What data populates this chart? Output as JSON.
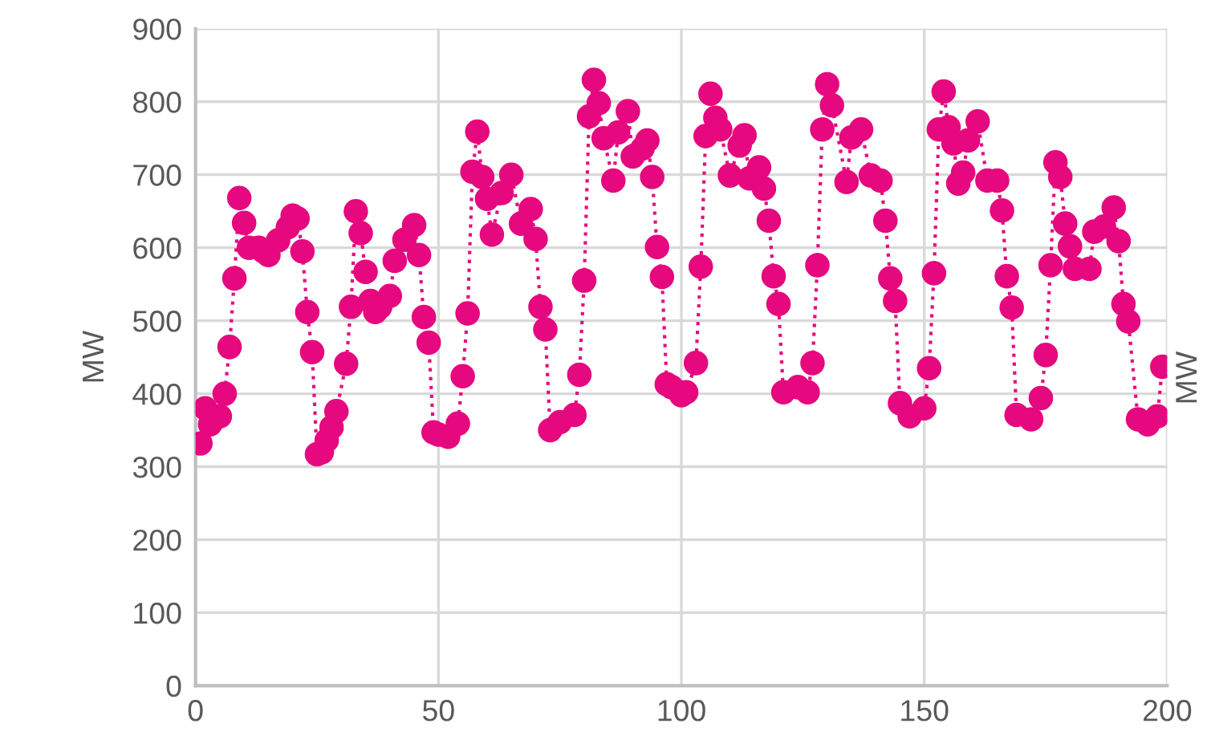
{
  "chart_data": {
    "type": "line",
    "ylabel": "MW",
    "y2label": "MW",
    "xlim": [
      0,
      200
    ],
    "xticks": [
      0,
      50,
      100,
      150,
      200
    ],
    "ylim": [
      0,
      900
    ],
    "yticks": [
      0,
      100,
      200,
      300,
      400,
      500,
      600,
      700,
      800,
      900
    ],
    "grid": true,
    "marker": "circle",
    "line_style": "dotted",
    "series": [
      {
        "color": "#e6087f",
        "x": [
          1,
          2,
          3,
          5,
          6,
          7,
          8,
          9,
          10,
          11,
          13,
          14,
          15,
          17,
          19,
          20,
          21,
          22,
          23,
          24,
          25,
          26,
          27,
          28,
          29,
          31,
          32,
          33,
          34,
          35,
          36,
          37,
          38,
          40,
          41,
          43,
          45,
          46,
          47,
          48,
          49,
          50,
          52,
          54,
          55,
          56,
          57,
          58,
          59,
          60,
          61,
          63,
          65,
          67,
          69,
          70,
          71,
          72,
          73,
          75,
          78,
          79,
          80,
          81,
          82,
          83,
          84,
          86,
          87,
          89,
          90,
          92,
          93,
          94,
          95,
          96,
          97,
          98,
          100,
          101,
          103,
          104,
          105,
          106,
          107,
          108,
          110,
          112,
          113,
          114,
          116,
          117,
          118,
          119,
          120,
          121,
          124,
          126,
          127,
          128,
          129,
          130,
          131,
          134,
          135,
          137,
          139,
          141,
          142,
          143,
          144,
          145,
          147,
          150,
          151,
          152,
          153,
          154,
          155,
          156,
          157,
          158,
          159,
          161,
          163,
          165,
          166,
          167,
          168,
          169,
          172,
          174,
          175,
          176,
          177,
          178,
          179,
          180,
          181,
          184,
          185,
          187,
          189,
          190,
          191,
          192,
          194,
          196,
          198,
          199
        ],
        "values": [
          332,
          380,
          358,
          369,
          400,
          464,
          558,
          668,
          634,
          600,
          600,
          595,
          590,
          610,
          628,
          644,
          640,
          595,
          512,
          457,
          317,
          320,
          336,
          354,
          376,
          441,
          519,
          650,
          620,
          567,
          527,
          512,
          519,
          534,
          582,
          611,
          631,
          590,
          505,
          470,
          347,
          344,
          341,
          359,
          424,
          510,
          704,
          759,
          697,
          667,
          618,
          675,
          700,
          633,
          653,
          612,
          519,
          488,
          350,
          361,
          371,
          426,
          555,
          780,
          830,
          798,
          750,
          692,
          758,
          787,
          725,
          736,
          747,
          697,
          601,
          560,
          413,
          409,
          398,
          402,
          442,
          574,
          753,
          811,
          778,
          762,
          699,
          740,
          754,
          695,
          710,
          681,
          637,
          561,
          523,
          402,
          409,
          402,
          442,
          576,
          762,
          824,
          795,
          690,
          751,
          762,
          699,
          692,
          637,
          558,
          527,
          387,
          369,
          380,
          435,
          565,
          762,
          814,
          765,
          743,
          688,
          703,
          747,
          773,
          692,
          692,
          651,
          561,
          518,
          371,
          365,
          394,
          453,
          576,
          717,
          697,
          633,
          602,
          571,
          571,
          622,
          629,
          655,
          609,
          523,
          499,
          365,
          358,
          369,
          437
        ]
      }
    ]
  }
}
